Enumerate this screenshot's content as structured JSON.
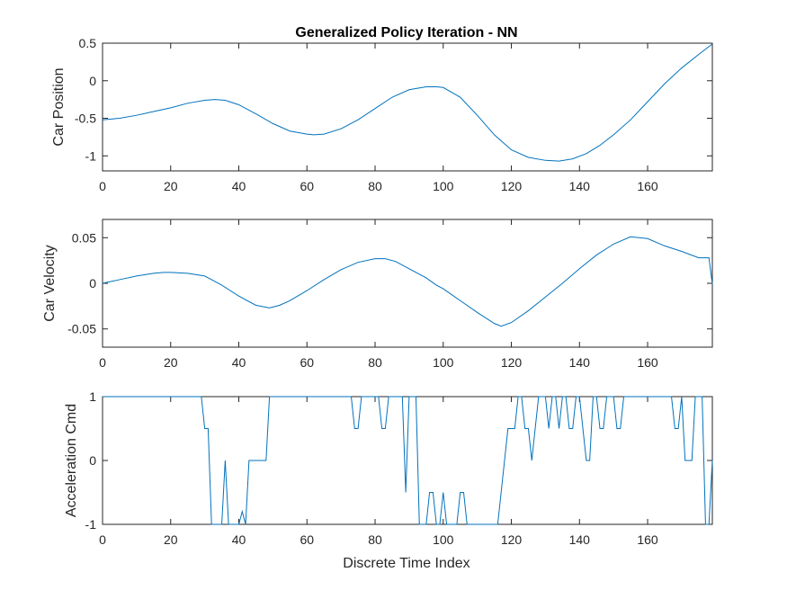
{
  "title": "Generalized Policy Iteration - NN",
  "xlabel": "Discrete Time Index",
  "line_color": "#0072BD",
  "chart_data": [
    {
      "type": "line",
      "title": "Generalized Policy Iteration - NN",
      "ylabel": "Car Position",
      "xlabel": "",
      "xlim": [
        0,
        179
      ],
      "ylim": [
        -1.2,
        0.5
      ],
      "xticks": [
        0,
        20,
        40,
        60,
        80,
        100,
        120,
        140,
        160
      ],
      "yticks": [
        0.5,
        0,
        -0.5,
        -1
      ],
      "ytick_labels": [
        "0.5",
        "0",
        "-0.5",
        "-1"
      ],
      "series": [
        {
          "x": [
            0,
            5,
            10,
            15,
            20,
            25,
            30,
            33,
            36,
            40,
            45,
            50,
            55,
            60,
            62,
            65,
            70,
            75,
            80,
            85,
            90,
            95,
            98,
            100,
            105,
            110,
            115,
            120,
            125,
            130,
            134,
            138,
            142,
            146,
            150,
            155,
            160,
            165,
            170,
            175,
            179
          ],
          "y": [
            -0.52,
            -0.5,
            -0.46,
            -0.41,
            -0.36,
            -0.3,
            -0.26,
            -0.25,
            -0.26,
            -0.32,
            -0.44,
            -0.57,
            -0.67,
            -0.71,
            -0.72,
            -0.71,
            -0.64,
            -0.52,
            -0.37,
            -0.22,
            -0.12,
            -0.08,
            -0.08,
            -0.09,
            -0.22,
            -0.46,
            -0.72,
            -0.92,
            -1.02,
            -1.06,
            -1.07,
            -1.04,
            -0.97,
            -0.86,
            -0.72,
            -0.52,
            -0.28,
            -0.04,
            0.17,
            0.35,
            0.49
          ]
        }
      ]
    },
    {
      "type": "line",
      "ylabel": "Car Velocity",
      "xlabel": "",
      "xlim": [
        0,
        179
      ],
      "ylim": [
        -0.07,
        0.07
      ],
      "xticks": [
        0,
        20,
        40,
        60,
        80,
        100,
        120,
        140,
        160
      ],
      "yticks": [
        0.05,
        0,
        -0.05
      ],
      "ytick_labels": [
        "0.05",
        "0",
        "-0.05"
      ],
      "series": [
        {
          "x": [
            0,
            5,
            10,
            15,
            18,
            20,
            25,
            30,
            32,
            35,
            40,
            45,
            49,
            52,
            55,
            60,
            65,
            70,
            75,
            80,
            83,
            86,
            90,
            95,
            98,
            100,
            105,
            110,
            115,
            117,
            120,
            125,
            130,
            135,
            140,
            145,
            150,
            155,
            160,
            165,
            170,
            175,
            178,
            179
          ],
          "y": [
            0.0,
            0.004,
            0.008,
            0.011,
            0.012,
            0.012,
            0.011,
            0.008,
            0.004,
            -0.002,
            -0.014,
            -0.024,
            -0.027,
            -0.024,
            -0.019,
            -0.008,
            0.004,
            0.015,
            0.023,
            0.027,
            0.027,
            0.024,
            0.016,
            0.006,
            -0.002,
            -0.006,
            -0.019,
            -0.032,
            -0.044,
            -0.047,
            -0.043,
            -0.03,
            -0.015,
            0.0,
            0.016,
            0.031,
            0.043,
            0.051,
            0.049,
            0.041,
            0.035,
            0.028,
            0.028,
            -0.001
          ]
        }
      ]
    },
    {
      "type": "line",
      "ylabel": "Acceleration Cmd",
      "xlabel": "Discrete Time Index",
      "xlim": [
        0,
        179
      ],
      "ylim": [
        -1,
        1
      ],
      "xticks": [
        0,
        20,
        40,
        60,
        80,
        100,
        120,
        140,
        160
      ],
      "yticks": [
        1,
        0,
        -1
      ],
      "ytick_labels": [
        "1",
        "0",
        "-1"
      ],
      "series": [
        {
          "x": [
            0,
            29,
            30,
            31,
            32,
            33,
            34,
            35,
            36,
            37,
            38,
            39,
            40,
            41,
            42,
            43,
            44,
            45,
            46,
            47,
            48,
            49,
            50,
            73,
            74,
            75,
            76,
            80,
            81,
            82,
            83,
            84,
            87,
            88,
            89,
            90,
            91,
            92,
            93,
            94,
            95,
            96,
            97,
            98,
            99,
            100,
            101,
            102,
            103,
            104,
            105,
            106,
            107,
            108,
            109,
            110,
            116,
            117,
            118,
            119,
            120,
            121,
            122,
            123,
            124,
            125,
            126,
            127,
            128,
            129,
            130,
            131,
            132,
            133,
            134,
            135,
            136,
            137,
            138,
            139,
            140,
            141,
            142,
            143,
            144,
            145,
            146,
            147,
            148,
            149,
            150,
            151,
            152,
            153,
            154,
            155,
            156,
            157,
            158,
            159,
            160,
            167,
            168,
            169,
            170,
            171,
            172,
            173,
            174,
            175,
            176,
            177,
            178,
            179
          ],
          "y": [
            1,
            1,
            0.5,
            0.5,
            -1,
            -1,
            -1,
            -1,
            0,
            -1,
            -1,
            -1,
            -1,
            -0.8,
            -1,
            0,
            0,
            0,
            0,
            0,
            0,
            1,
            1,
            1,
            0.5,
            0.5,
            1,
            1,
            1,
            0.5,
            0.5,
            1,
            1,
            1,
            -0.5,
            1,
            1,
            1,
            -1,
            -1,
            -1,
            -0.5,
            -0.5,
            -1,
            -1,
            -0.5,
            -1,
            -1,
            -1,
            -1,
            -0.5,
            -0.5,
            -1,
            -1,
            -1,
            -1,
            -1,
            -0.5,
            0,
            0.5,
            0.5,
            0.5,
            1,
            1,
            0.5,
            0.5,
            0,
            0.5,
            1,
            1,
            1,
            0.5,
            1,
            1,
            0.5,
            1,
            1,
            0.5,
            0.5,
            1,
            1,
            0.5,
            0,
            0,
            1,
            1,
            0.5,
            0.5,
            1,
            1,
            1,
            0.5,
            0.5,
            1,
            1,
            1,
            1,
            1,
            1,
            1,
            1,
            1,
            0.5,
            0.5,
            1,
            0,
            0,
            0,
            1,
            1,
            1,
            -1,
            -1,
            0
          ]
        }
      ]
    }
  ]
}
